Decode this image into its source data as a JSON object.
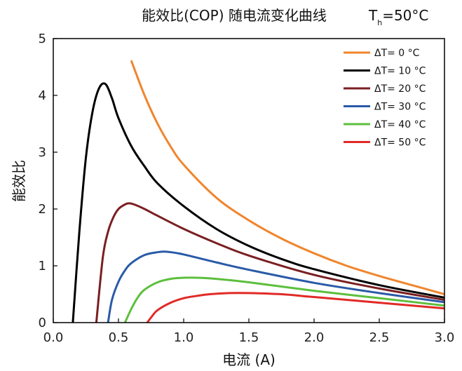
{
  "chart_data": {
    "type": "line",
    "title": "能效比(COP) 随电流变化曲线",
    "subtitle": "T_h=50°C",
    "annotation": {
      "symbol": "T",
      "subscript": "h",
      "rest": "=50°C"
    },
    "xlabel": "电流 (A)",
    "ylabel": "能效比",
    "xlim": [
      0,
      3.0
    ],
    "ylim": [
      0,
      5
    ],
    "xticks": [
      "0.0",
      "0.5",
      "1.0",
      "1.5",
      "2.0",
      "2.5",
      "3.0"
    ],
    "yticks": [
      "0",
      "1",
      "2",
      "3",
      "4",
      "5"
    ],
    "legend_position": "top-right",
    "series": [
      {
        "name": "ΔT= 0 °C",
        "color": "#f0852d",
        "x": [
          0.6,
          0.7,
          0.8,
          0.9,
          1.0,
          1.25,
          1.5,
          1.75,
          2.0,
          2.25,
          2.5,
          2.75,
          3.0
        ],
        "y": [
          4.6,
          4.0,
          3.5,
          3.1,
          2.78,
          2.2,
          1.8,
          1.48,
          1.22,
          1.0,
          0.82,
          0.66,
          0.5
        ]
      },
      {
        "name": "ΔT= 10 °C",
        "color": "#000000",
        "x": [
          0.15,
          0.2,
          0.25,
          0.3,
          0.35,
          0.4,
          0.45,
          0.5,
          0.6,
          0.7,
          0.8,
          1.0,
          1.25,
          1.5,
          1.75,
          2.0,
          2.5,
          3.0
        ],
        "y": [
          0.0,
          1.6,
          2.9,
          3.7,
          4.12,
          4.2,
          3.95,
          3.6,
          3.1,
          2.75,
          2.45,
          2.05,
          1.65,
          1.35,
          1.12,
          0.94,
          0.66,
          0.44
        ]
      },
      {
        "name": "ΔT= 20 °C",
        "color": "#7a1f22",
        "x": [
          0.33,
          0.38,
          0.42,
          0.46,
          0.5,
          0.55,
          0.58,
          0.62,
          0.7,
          0.8,
          1.0,
          1.25,
          1.5,
          2.0,
          2.5,
          3.0
        ],
        "y": [
          0.0,
          1.15,
          1.6,
          1.85,
          2.0,
          2.08,
          2.1,
          2.08,
          2.0,
          1.88,
          1.65,
          1.4,
          1.18,
          0.84,
          0.6,
          0.4
        ]
      },
      {
        "name": "ΔT= 30 °C",
        "color": "#2a5aa8",
        "x": [
          0.42,
          0.45,
          0.5,
          0.55,
          0.6,
          0.7,
          0.8,
          0.85,
          0.9,
          1.0,
          1.25,
          1.5,
          2.0,
          2.5,
          3.0
        ],
        "y": [
          0.0,
          0.4,
          0.72,
          0.92,
          1.05,
          1.19,
          1.24,
          1.25,
          1.24,
          1.2,
          1.06,
          0.93,
          0.7,
          0.52,
          0.36
        ]
      },
      {
        "name": "ΔT= 40 °C",
        "color": "#5cbf3c",
        "x": [
          0.55,
          0.6,
          0.65,
          0.7,
          0.8,
          0.9,
          1.0,
          1.1,
          1.25,
          1.5,
          2.0,
          2.5,
          3.0
        ],
        "y": [
          0.0,
          0.25,
          0.45,
          0.58,
          0.71,
          0.77,
          0.79,
          0.79,
          0.77,
          0.71,
          0.56,
          0.43,
          0.3
        ]
      },
      {
        "name": "ΔT= 50 °C",
        "color": "#e12a26",
        "x": [
          0.72,
          0.76,
          0.8,
          0.9,
          1.0,
          1.1,
          1.2,
          1.35,
          1.5,
          1.75,
          2.0,
          2.5,
          3.0
        ],
        "y": [
          0.0,
          0.12,
          0.22,
          0.35,
          0.43,
          0.47,
          0.5,
          0.52,
          0.52,
          0.5,
          0.45,
          0.35,
          0.25
        ]
      }
    ]
  }
}
